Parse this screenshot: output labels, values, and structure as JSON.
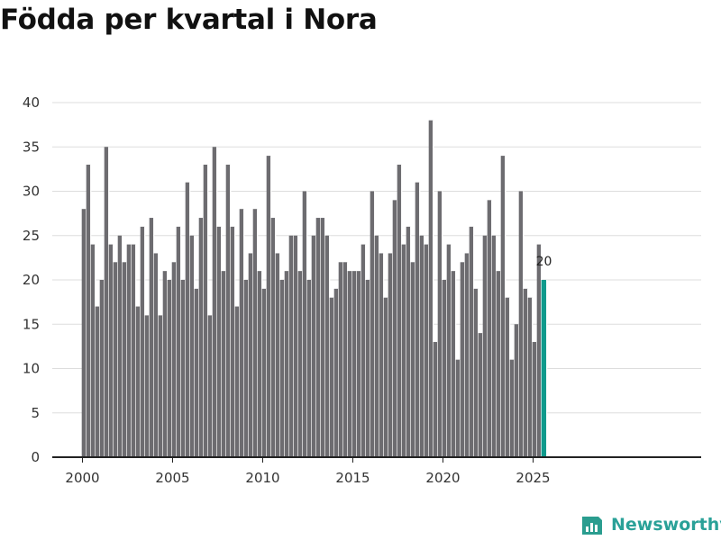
{
  "title": "Födda per kvartal i Nora",
  "brand": {
    "name": "Newsworthy",
    "icon": "newsworthy-logo-icon",
    "color": "#2a9d8f"
  },
  "chart_data": {
    "type": "bar",
    "title": "Födda per kvartal i Nora",
    "xlabel": "",
    "ylabel": "",
    "ylim": [
      0,
      40
    ],
    "yticks": [
      0,
      5,
      10,
      15,
      20,
      25,
      30,
      35,
      40
    ],
    "xticks": [
      2000,
      2005,
      2010,
      2015,
      2020,
      2025
    ],
    "start": {
      "year": 2000,
      "quarter": 1
    },
    "grid": true,
    "bar_color": "#6d6c70",
    "highlight_color": "#0f9a8c",
    "highlight_last": true,
    "last_label": "20",
    "values": [
      28,
      33,
      24,
      17,
      20,
      35,
      24,
      22,
      25,
      22,
      24,
      24,
      17,
      26,
      16,
      27,
      23,
      16,
      21,
      20,
      22,
      26,
      20,
      31,
      25,
      19,
      27,
      33,
      16,
      35,
      26,
      21,
      33,
      26,
      17,
      28,
      20,
      23,
      28,
      21,
      19,
      34,
      27,
      23,
      20,
      21,
      25,
      25,
      21,
      30,
      20,
      25,
      27,
      27,
      25,
      18,
      19,
      22,
      22,
      21,
      21,
      21,
      24,
      20,
      30,
      25,
      23,
      18,
      23,
      29,
      33,
      24,
      26,
      22,
      31,
      25,
      24,
      38,
      13,
      30,
      20,
      24,
      21,
      11,
      22,
      23,
      26,
      19,
      14,
      25,
      29,
      25,
      21,
      34,
      18,
      11,
      15,
      30,
      19,
      18,
      13,
      24,
      20
    ]
  }
}
